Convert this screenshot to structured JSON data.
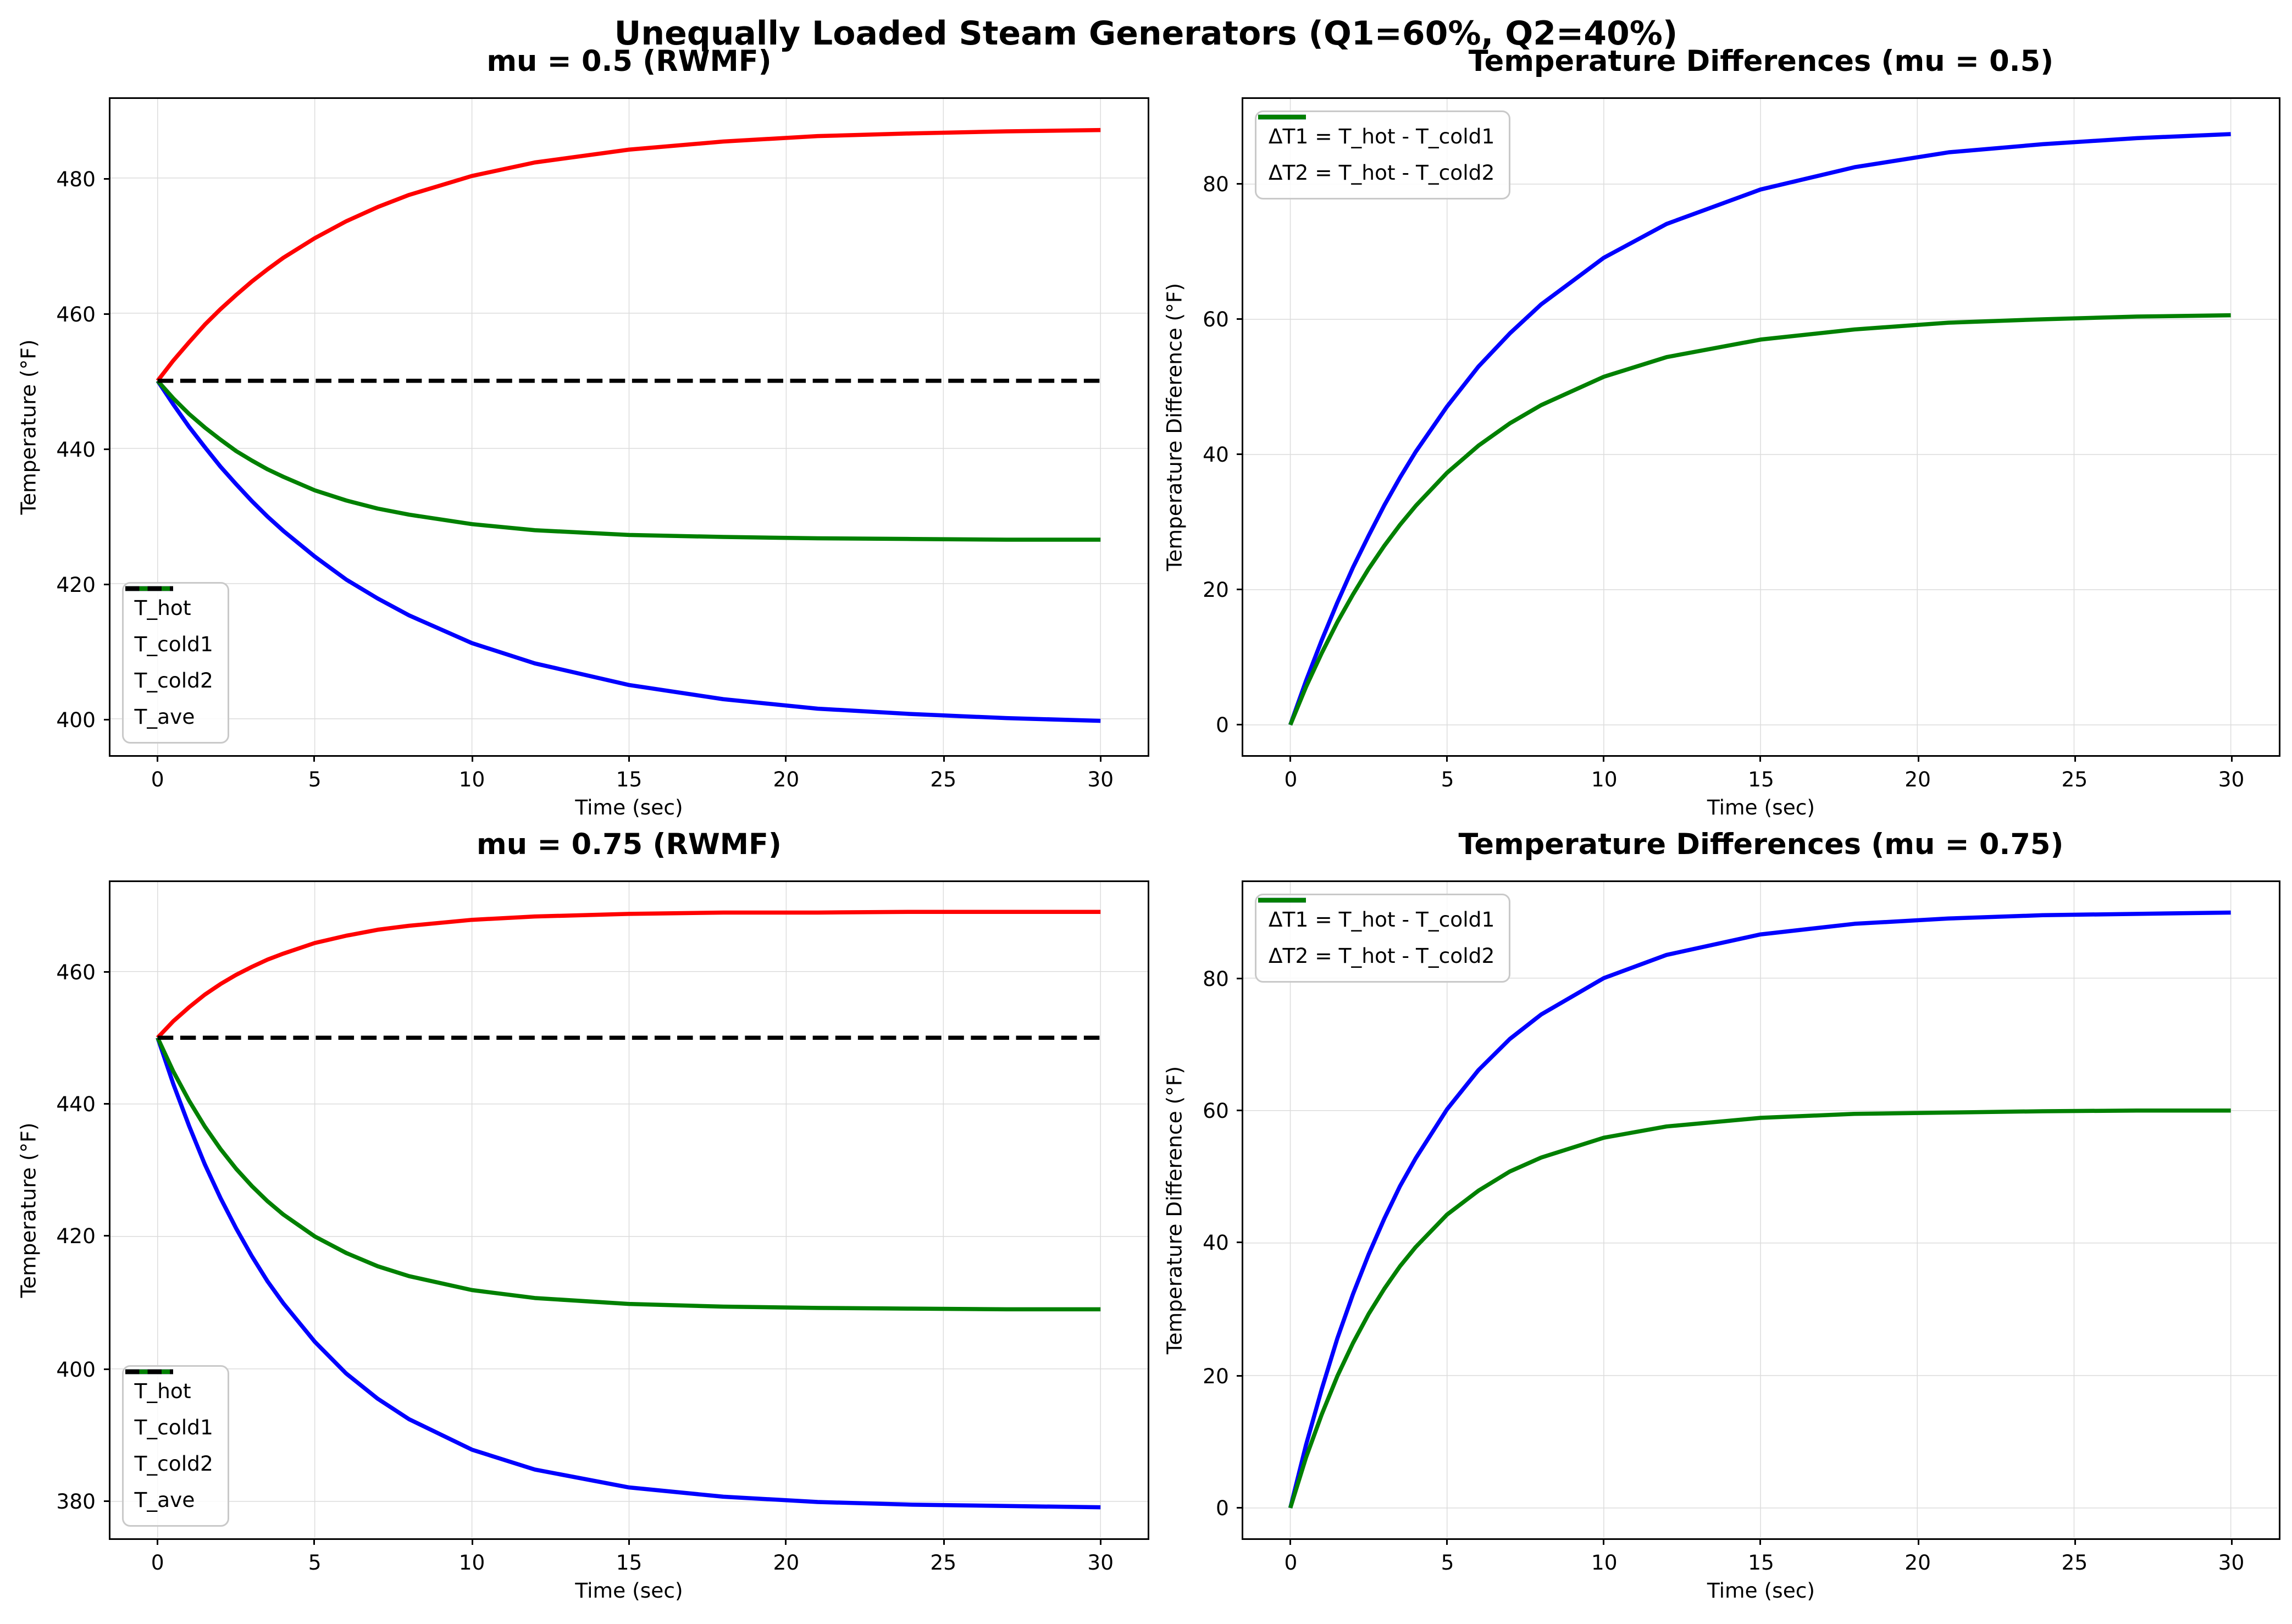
{
  "figure": {
    "suptitle": "Unequally Loaded Steam Generators (Q1=60%, Q2=40%)",
    "background": "#ffffff",
    "grid_color": "#dcdcdc",
    "spine_color": "#000000",
    "legend_border_color": "#c9c9c9"
  },
  "chart_data": [
    {
      "id": "temps_mu05",
      "type": "line",
      "title": "mu = 0.5 (RWMF)",
      "xlabel": "Time (sec)",
      "ylabel": "Temperature (°F)",
      "xlim": [
        -1.5,
        31.5
      ],
      "ylim": [
        394.7,
        491.7
      ],
      "xticks": [
        0,
        5,
        10,
        15,
        20,
        25,
        30
      ],
      "yticks": [
        400,
        420,
        440,
        460,
        480
      ],
      "grid": true,
      "legend": {
        "position": "lower-left"
      },
      "layout": {
        "row": 0,
        "col": 0
      },
      "x": [
        0,
        0.5,
        1,
        1.5,
        2,
        2.5,
        3,
        3.5,
        4,
        5,
        6,
        7,
        8,
        10,
        12,
        15,
        18,
        21,
        24,
        27,
        30
      ],
      "series": [
        {
          "name": "T_hot",
          "color": "#ff0000",
          "style": "solid",
          "values": [
            450,
            453,
            455.7,
            458.3,
            460.6,
            462.7,
            464.7,
            466.5,
            468.2,
            471.1,
            473.6,
            475.7,
            477.5,
            480.3,
            482.3,
            484.2,
            485.4,
            486.2,
            486.6,
            486.9,
            487.1
          ]
        },
        {
          "name": "T_cold1",
          "color": "#0000ff",
          "style": "solid",
          "values": [
            450,
            446.5,
            443.2,
            440.2,
            437.3,
            434.7,
            432.2,
            429.9,
            427.8,
            424,
            420.6,
            417.8,
            415.3,
            411.2,
            408.2,
            405,
            402.9,
            401.5,
            400.7,
            400.1,
            399.7
          ]
        },
        {
          "name": "T_cold2",
          "color": "#008000",
          "style": "solid",
          "values": [
            450,
            447.4,
            445.1,
            443.1,
            441.3,
            439.6,
            438.2,
            436.9,
            435.8,
            433.8,
            432.3,
            431.1,
            430.2,
            428.8,
            427.9,
            427.2,
            426.9,
            426.7,
            426.6,
            426.5,
            426.5
          ]
        },
        {
          "name": "T_ave",
          "color": "#000000",
          "style": "dashed",
          "values": [
            450,
            450,
            450,
            450,
            450,
            450,
            450,
            450,
            450,
            450,
            450,
            450,
            450,
            450,
            450,
            450,
            450,
            450,
            450,
            450,
            450
          ]
        }
      ]
    },
    {
      "id": "diffs_mu05",
      "type": "line",
      "title": "Temperature Differences (mu = 0.5)",
      "xlabel": "Time (sec)",
      "ylabel": "Temperature Difference (°F)",
      "xlim": [
        -1.5,
        31.5
      ],
      "ylim": [
        -4.4,
        92.6
      ],
      "xticks": [
        0,
        5,
        10,
        15,
        20,
        25,
        30
      ],
      "yticks": [
        0,
        20,
        40,
        60,
        80
      ],
      "grid": true,
      "legend": {
        "position": "upper-left"
      },
      "layout": {
        "row": 0,
        "col": 1
      },
      "x": [
        0,
        0.5,
        1,
        1.5,
        2,
        2.5,
        3,
        3.5,
        4,
        5,
        6,
        7,
        8,
        10,
        12,
        15,
        18,
        21,
        24,
        27,
        30
      ],
      "series": [
        {
          "name": "ΔT1 = T_hot - T_cold1",
          "color": "#0000ff",
          "style": "solid",
          "values": [
            0,
            6.5,
            12.5,
            18.1,
            23.3,
            28,
            32.5,
            36.6,
            40.4,
            47.1,
            53,
            57.9,
            62.2,
            69.1,
            74.1,
            79.2,
            82.5,
            84.7,
            85.9,
            86.8,
            87.4
          ]
        },
        {
          "name": "ΔT2 = T_hot - T_cold2",
          "color": "#008000",
          "style": "solid",
          "values": [
            0,
            5.6,
            10.6,
            15.2,
            19.3,
            23.1,
            26.5,
            29.6,
            32.4,
            37.3,
            41.3,
            44.6,
            47.3,
            51.5,
            54.4,
            57,
            58.5,
            59.5,
            60,
            60.4,
            60.6
          ]
        }
      ]
    },
    {
      "id": "temps_mu075",
      "type": "line",
      "title": "mu = 0.75 (RWMF)",
      "xlabel": "Time (sec)",
      "ylabel": "Temperature (°F)",
      "xlim": [
        -1.5,
        31.5
      ],
      "ylim": [
        374.5,
        473.5
      ],
      "xticks": [
        0,
        5,
        10,
        15,
        20,
        25,
        30
      ],
      "yticks": [
        380,
        400,
        420,
        440,
        460
      ],
      "grid": true,
      "legend": {
        "position": "lower-left"
      },
      "layout": {
        "row": 1,
        "col": 0
      },
      "x": [
        0,
        0.5,
        1,
        1.5,
        2,
        2.5,
        3,
        3.5,
        4,
        5,
        6,
        7,
        8,
        10,
        12,
        15,
        18,
        21,
        24,
        27,
        30
      ],
      "series": [
        {
          "name": "T_hot",
          "color": "#ff0000",
          "style": "solid",
          "values": [
            450,
            452.5,
            454.6,
            456.5,
            458.1,
            459.5,
            460.7,
            461.8,
            462.7,
            464.3,
            465.4,
            466.3,
            466.9,
            467.8,
            468.3,
            468.7,
            468.9,
            468.9,
            469,
            469,
            469
          ]
        },
        {
          "name": "T_cold1",
          "color": "#0000ff",
          "style": "solid",
          "values": [
            450,
            443,
            436.7,
            430.9,
            425.8,
            421.2,
            417,
            413.2,
            409.9,
            404.1,
            399.3,
            395.5,
            392.4,
            387.8,
            384.8,
            382.1,
            380.7,
            379.9,
            379.5,
            379.3,
            379.1
          ]
        },
        {
          "name": "T_cold2",
          "color": "#008000",
          "style": "solid",
          "values": [
            450,
            444.9,
            440.5,
            436.6,
            433.2,
            430.2,
            427.6,
            425.3,
            423.3,
            420,
            417.5,
            415.5,
            414,
            411.9,
            410.7,
            409.8,
            409.4,
            409.2,
            409.1,
            409,
            409
          ]
        },
        {
          "name": "T_ave",
          "color": "#000000",
          "style": "dashed",
          "values": [
            450,
            450,
            450,
            450,
            450,
            450,
            450,
            450,
            450,
            450,
            450,
            450,
            450,
            450,
            450,
            450,
            450,
            450,
            450,
            450,
            450
          ]
        }
      ]
    },
    {
      "id": "diffs_mu075",
      "type": "line",
      "title": "Temperature Differences (mu = 0.75)",
      "xlabel": "Time (sec)",
      "ylabel": "Temperature Difference (°F)",
      "xlim": [
        -1.5,
        31.5
      ],
      "ylim": [
        -4.5,
        94.5
      ],
      "xticks": [
        0,
        5,
        10,
        15,
        20,
        25,
        30
      ],
      "yticks": [
        0,
        20,
        40,
        60,
        80
      ],
      "grid": true,
      "legend": {
        "position": "upper-left"
      },
      "layout": {
        "row": 1,
        "col": 1
      },
      "x": [
        0,
        0.5,
        1,
        1.5,
        2,
        2.5,
        3,
        3.5,
        4,
        5,
        6,
        7,
        8,
        10,
        12,
        15,
        18,
        21,
        24,
        27,
        30
      ],
      "series": [
        {
          "name": "ΔT1 = T_hot - T_cold1",
          "color": "#0000ff",
          "style": "solid",
          "values": [
            0,
            9.5,
            17.9,
            25.6,
            32.3,
            38.3,
            43.7,
            48.6,
            52.8,
            60.2,
            66.1,
            70.8,
            74.5,
            80,
            83.5,
            86.6,
            88.2,
            89,
            89.5,
            89.7,
            89.9
          ]
        },
        {
          "name": "ΔT2 = T_hot - T_cold2",
          "color": "#008000",
          "style": "solid",
          "values": [
            0,
            7.6,
            14.1,
            19.9,
            24.9,
            29.3,
            33.1,
            36.5,
            39.4,
            44.3,
            47.9,
            50.8,
            52.9,
            55.9,
            57.6,
            58.9,
            59.5,
            59.7,
            59.9,
            60,
            60
          ]
        }
      ]
    }
  ]
}
